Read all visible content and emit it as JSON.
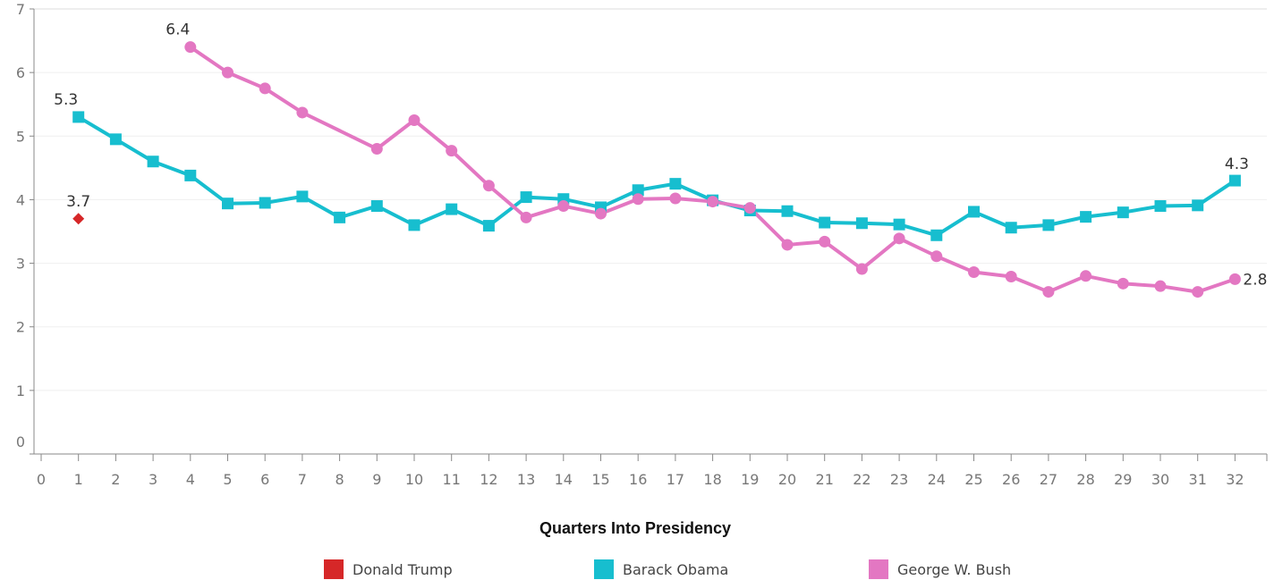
{
  "chart_data": {
    "type": "line",
    "xlabel": "Quarters Into Presidency",
    "ylabel": "",
    "xlim": [
      0,
      32
    ],
    "ylim": [
      0,
      7
    ],
    "x_ticks": [
      0,
      1,
      2,
      3,
      4,
      5,
      6,
      7,
      8,
      9,
      10,
      11,
      12,
      13,
      14,
      15,
      16,
      17,
      18,
      19,
      20,
      21,
      22,
      23,
      24,
      25,
      26,
      27,
      28,
      29,
      30,
      31,
      32
    ],
    "y_ticks": [
      0,
      1,
      2,
      3,
      4,
      5,
      6,
      7
    ],
    "grid": "horizontal",
    "legend_position": "bottom",
    "series": [
      {
        "name": "Donald Trump",
        "color": "#d62728",
        "marker": "diamond",
        "x": [
          1
        ],
        "values": [
          3.7
        ],
        "labels": [
          {
            "x": 1,
            "text": "3.7"
          }
        ]
      },
      {
        "name": "Barack Obama",
        "color": "#17becf",
        "marker": "square",
        "x": [
          1,
          2,
          3,
          4,
          5,
          6,
          7,
          8,
          9,
          10,
          11,
          12,
          13,
          14,
          15,
          16,
          17,
          18,
          19,
          20,
          21,
          22,
          23,
          24,
          25,
          26,
          27,
          28,
          29,
          30,
          31,
          32
        ],
        "values": [
          5.3,
          4.95,
          4.6,
          4.38,
          3.94,
          3.95,
          4.05,
          3.72,
          3.9,
          3.6,
          3.85,
          3.59,
          4.04,
          4.01,
          3.88,
          4.15,
          4.25,
          3.99,
          3.83,
          3.82,
          3.64,
          3.63,
          3.61,
          3.44,
          3.81,
          3.56,
          3.6,
          3.73,
          3.8,
          3.9,
          3.91,
          4.3
        ],
        "labels": [
          {
            "x": 1,
            "text": "5.3"
          },
          {
            "x": 32,
            "text": "4.3"
          }
        ]
      },
      {
        "name": "George W. Bush",
        "color": "#e377c2",
        "marker": "circle",
        "x": [
          4,
          5,
          6,
          7,
          9,
          10,
          11,
          12,
          13,
          14,
          15,
          16,
          17,
          18,
          19,
          20,
          21,
          22,
          23,
          24,
          25,
          26,
          27,
          28,
          29,
          30,
          31,
          32
        ],
        "values": [
          6.4,
          6.0,
          5.75,
          5.37,
          4.8,
          5.25,
          4.77,
          4.22,
          3.72,
          3.9,
          3.78,
          4.01,
          4.02,
          3.97,
          3.87,
          3.29,
          3.34,
          2.91,
          3.39,
          3.11,
          2.86,
          2.79,
          2.55,
          2.8,
          2.68,
          2.64,
          2.55,
          2.75
        ],
        "labels": [
          {
            "x": 4,
            "text": "6.4"
          },
          {
            "x": 32,
            "text": "2.8"
          }
        ]
      }
    ]
  }
}
